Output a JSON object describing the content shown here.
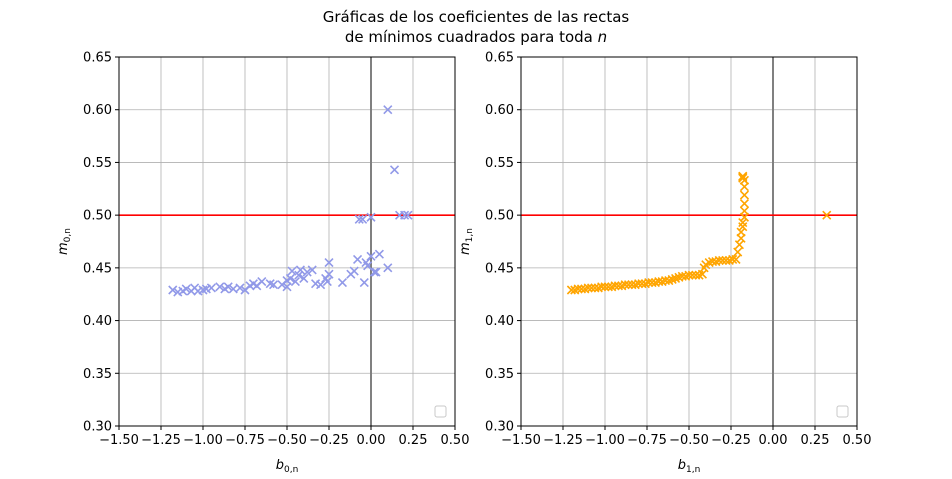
{
  "figure": {
    "title_line1": "Gráficas de los coeficientes de las rectas",
    "title_line2_prefix": "de mínimos cuadrados para toda ",
    "title_line2_var": "n"
  },
  "chart_data": [
    {
      "type": "scatter",
      "xlabel_base": "b",
      "xlabel_sub": "0,n",
      "ylabel_base": "m",
      "ylabel_sub": "0,n",
      "xlim": [
        -1.5,
        0.5
      ],
      "ylim": [
        0.3,
        0.65
      ],
      "xticks": [
        -1.5,
        -1.25,
        -1.0,
        -0.75,
        -0.5,
        -0.25,
        0.0,
        0.25,
        0.5
      ],
      "xtick_labels": [
        "−1.50",
        "−1.25",
        "−1.00",
        "−0.75",
        "−0.50",
        "−0.25",
        "0.00",
        "0.25",
        "0.50"
      ],
      "yticks": [
        0.3,
        0.35,
        0.4,
        0.45,
        0.5,
        0.55,
        0.6,
        0.65
      ],
      "ytick_labels": [
        "0.30",
        "0.35",
        "0.40",
        "0.45",
        "0.50",
        "0.55",
        "0.60",
        "0.65"
      ],
      "grid": true,
      "legend": "lower-right",
      "color": "#9199e8",
      "hline": {
        "y": 0.5,
        "color": "#ff0000"
      },
      "vline": {
        "x": 0.0,
        "color": "#808080"
      },
      "series": [
        {
          "x": [
            -1.18,
            -1.15,
            -1.12,
            -1.1,
            -1.07,
            -1.05,
            -1.03,
            -1.0,
            -0.98,
            -0.95,
            -0.9,
            -0.87,
            -0.85,
            -0.82,
            -0.78,
            -0.75,
            -0.72,
            -0.7,
            -0.68,
            -0.65,
            -0.6,
            -0.58,
            -0.53,
            -0.5,
            -0.5,
            -0.48,
            -0.47,
            -0.45,
            -0.43,
            -0.42,
            -0.4,
            -0.38,
            -0.35,
            -0.33,
            -0.3,
            -0.27,
            -0.26,
            -0.25,
            -0.25,
            -0.17,
            -0.12,
            -0.1,
            -0.08,
            -0.07,
            -0.05,
            -0.04,
            -0.03,
            -0.02,
            0.0,
            0.0,
            0.02,
            0.03,
            0.05,
            0.1,
            0.1,
            0.14,
            0.17,
            0.2,
            0.22
          ],
          "y": [
            0.429,
            0.427,
            0.428,
            0.43,
            0.428,
            0.431,
            0.428,
            0.429,
            0.43,
            0.431,
            0.432,
            0.43,
            0.432,
            0.43,
            0.431,
            0.429,
            0.433,
            0.435,
            0.433,
            0.437,
            0.435,
            0.434,
            0.434,
            0.432,
            0.438,
            0.44,
            0.447,
            0.437,
            0.443,
            0.448,
            0.44,
            0.446,
            0.448,
            0.435,
            0.434,
            0.44,
            0.437,
            0.455,
            0.444,
            0.436,
            0.444,
            0.447,
            0.458,
            0.496,
            0.496,
            0.436,
            0.455,
            0.452,
            0.498,
            0.461,
            0.446,
            0.446,
            0.463,
            0.6,
            0.45,
            0.543,
            0.5,
            0.5,
            0.5
          ]
        }
      ]
    },
    {
      "type": "scatter",
      "xlabel_base": "b",
      "xlabel_sub": "1,n",
      "ylabel_base": "m",
      "ylabel_sub": "1,n",
      "xlim": [
        -1.5,
        0.5
      ],
      "ylim": [
        0.3,
        0.65
      ],
      "xticks": [
        -1.5,
        -1.25,
        -1.0,
        -0.75,
        -0.5,
        -0.25,
        0.0,
        0.25,
        0.5
      ],
      "xtick_labels": [
        "−1.50",
        "−1.25",
        "−1.00",
        "−0.75",
        "−0.50",
        "−0.25",
        "0.00",
        "0.25",
        "0.50"
      ],
      "yticks": [
        0.3,
        0.35,
        0.4,
        0.45,
        0.5,
        0.55,
        0.6,
        0.65
      ],
      "ytick_labels": [
        "0.30",
        "0.35",
        "0.40",
        "0.45",
        "0.50",
        "0.55",
        "0.60",
        "0.65"
      ],
      "grid": true,
      "legend": "lower-right",
      "color": "#ffa500",
      "hline": {
        "y": 0.5,
        "color": "#ff0000"
      },
      "vline": {
        "x": 0.0,
        "color": "#808080"
      },
      "series": [
        {
          "x": [
            -1.2,
            -1.18,
            -1.16,
            -1.14,
            -1.12,
            -1.1,
            -1.08,
            -1.06,
            -1.04,
            -1.02,
            -1.0,
            -0.98,
            -0.96,
            -0.94,
            -0.92,
            -0.9,
            -0.88,
            -0.86,
            -0.84,
            -0.82,
            -0.8,
            -0.78,
            -0.76,
            -0.74,
            -0.72,
            -0.7,
            -0.68,
            -0.66,
            -0.64,
            -0.62,
            -0.6,
            -0.58,
            -0.56,
            -0.54,
            -0.52,
            -0.5,
            -0.48,
            -0.46,
            -0.44,
            -0.42,
            -0.41,
            -0.4,
            -0.38,
            -0.36,
            -0.34,
            -0.32,
            -0.3,
            -0.28,
            -0.26,
            -0.24,
            -0.22,
            -0.21,
            -0.2,
            -0.19,
            -0.19,
            -0.18,
            -0.18,
            -0.17,
            -0.17,
            -0.17,
            -0.17,
            -0.17,
            -0.17,
            -0.18,
            -0.18,
            -0.18,
            0.32
          ],
          "y": [
            0.429,
            0.429,
            0.43,
            0.43,
            0.43,
            0.431,
            0.431,
            0.431,
            0.431,
            0.432,
            0.432,
            0.432,
            0.432,
            0.433,
            0.433,
            0.433,
            0.434,
            0.434,
            0.434,
            0.434,
            0.435,
            0.435,
            0.435,
            0.436,
            0.436,
            0.436,
            0.437,
            0.437,
            0.438,
            0.438,
            0.439,
            0.44,
            0.441,
            0.442,
            0.442,
            0.443,
            0.443,
            0.443,
            0.443,
            0.444,
            0.45,
            0.453,
            0.455,
            0.456,
            0.456,
            0.457,
            0.457,
            0.457,
            0.457,
            0.458,
            0.458,
            0.465,
            0.472,
            0.478,
            0.484,
            0.489,
            0.493,
            0.498,
            0.504,
            0.511,
            0.519,
            0.527,
            0.533,
            0.536,
            0.537,
            0.535,
            0.5
          ]
        }
      ]
    }
  ]
}
